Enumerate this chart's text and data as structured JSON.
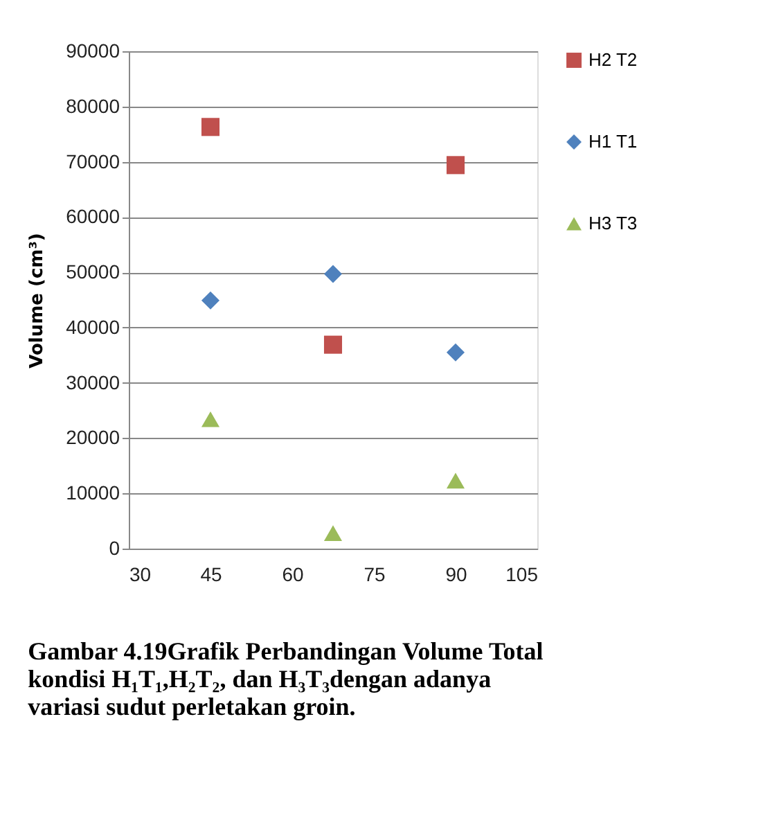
{
  "chart_data": {
    "type": "scatter",
    "ylabel": "Volume (cm³)",
    "xlim": [
      30,
      105
    ],
    "xticks": [
      30,
      45,
      60,
      75,
      90,
      105
    ],
    "ylim": [
      0,
      90000
    ],
    "yticks": [
      0,
      10000,
      20000,
      30000,
      40000,
      50000,
      60000,
      70000,
      80000,
      90000
    ],
    "grid": "y",
    "legend": "right",
    "series": [
      {
        "name": "H2 T2",
        "color": "#c0504d",
        "marker": "square",
        "x": [
          45,
          67.5,
          90
        ],
        "values": [
          76300,
          36900,
          69400
        ]
      },
      {
        "name": "H1 T1",
        "color": "#4f81bd",
        "marker": "diamond",
        "x": [
          45,
          67.5,
          90
        ],
        "values": [
          44900,
          49700,
          35500
        ]
      },
      {
        "name": "H3 T3",
        "color": "#9bbb59",
        "marker": "triangle",
        "x": [
          45,
          67.5,
          90
        ],
        "values": [
          23400,
          2800,
          12300
        ]
      }
    ],
    "annotations": [
      "Gambar 4.19Grafik Perbandingan Volume Total kondisi H₁T₁,H₂T₂, dan H₃T₃dengan adanya variasi sudut perletakan groin."
    ]
  }
}
